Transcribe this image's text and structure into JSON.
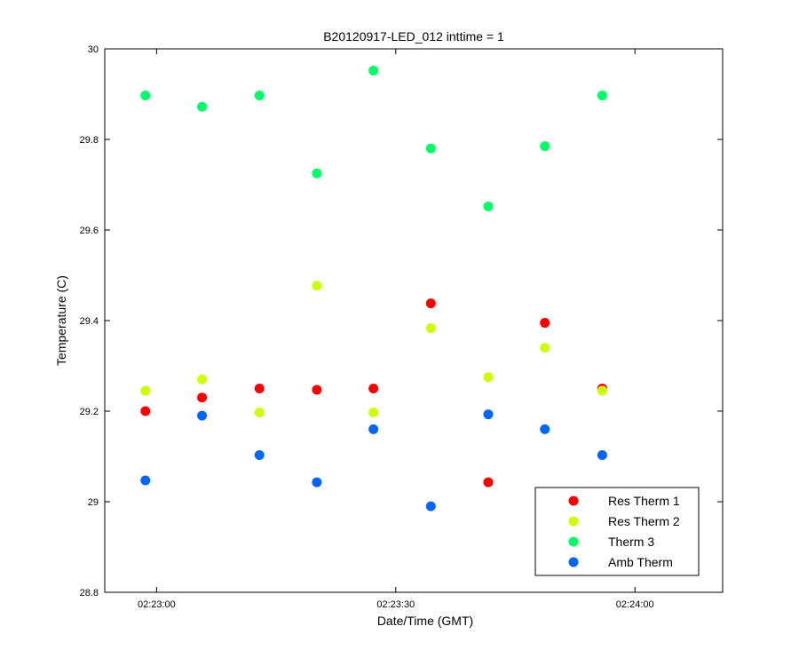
{
  "chart_data": {
    "type": "scatter",
    "title": "B20120917-LED_012 inttime = 1",
    "xlabel": "Date/Time (GMT)",
    "ylabel": "Temperature (C)",
    "x_unit": "seconds after 02:23:00",
    "xlim": [
      -6.5,
      71
    ],
    "ylim": [
      28.8,
      30
    ],
    "xticks": [
      {
        "value": 0,
        "label": "02:23:00"
      },
      {
        "value": 30,
        "label": "02:23:30"
      },
      {
        "value": 60,
        "label": "02:24:00"
      }
    ],
    "yticks": [
      {
        "value": 28.8,
        "label": "28.8"
      },
      {
        "value": 29.0,
        "label": "29"
      },
      {
        "value": 29.2,
        "label": "29.2"
      },
      {
        "value": 29.4,
        "label": "29.4"
      },
      {
        "value": 29.6,
        "label": "29.6"
      },
      {
        "value": 29.8,
        "label": "29.8"
      },
      {
        "value": 30.0,
        "label": "30"
      }
    ],
    "x": [
      -1.4,
      5.7,
      12.9,
      20.1,
      27.2,
      34.4,
      41.6,
      48.7,
      55.9
    ],
    "series": [
      {
        "name": "Res Therm 1",
        "color": "#ff0000",
        "values": [
          29.2,
          29.23,
          29.25,
          29.247,
          29.25,
          29.438,
          29.043,
          29.395,
          29.25
        ]
      },
      {
        "name": "Res Therm 2",
        "color": "#ccff00",
        "values": [
          29.245,
          29.27,
          29.197,
          29.477,
          29.197,
          29.383,
          29.275,
          29.34,
          29.245
        ]
      },
      {
        "name": "Therm 3",
        "color": "#00ff66",
        "values": [
          29.897,
          29.872,
          29.897,
          29.725,
          29.952,
          29.78,
          29.652,
          29.785,
          29.897
        ]
      },
      {
        "name": "Amb Therm",
        "color": "#0066ff",
        "values": [
          29.047,
          29.19,
          29.103,
          29.043,
          29.16,
          28.99,
          29.193,
          29.16,
          29.103
        ]
      }
    ],
    "grid": false,
    "legend_position": "bottom-right"
  }
}
